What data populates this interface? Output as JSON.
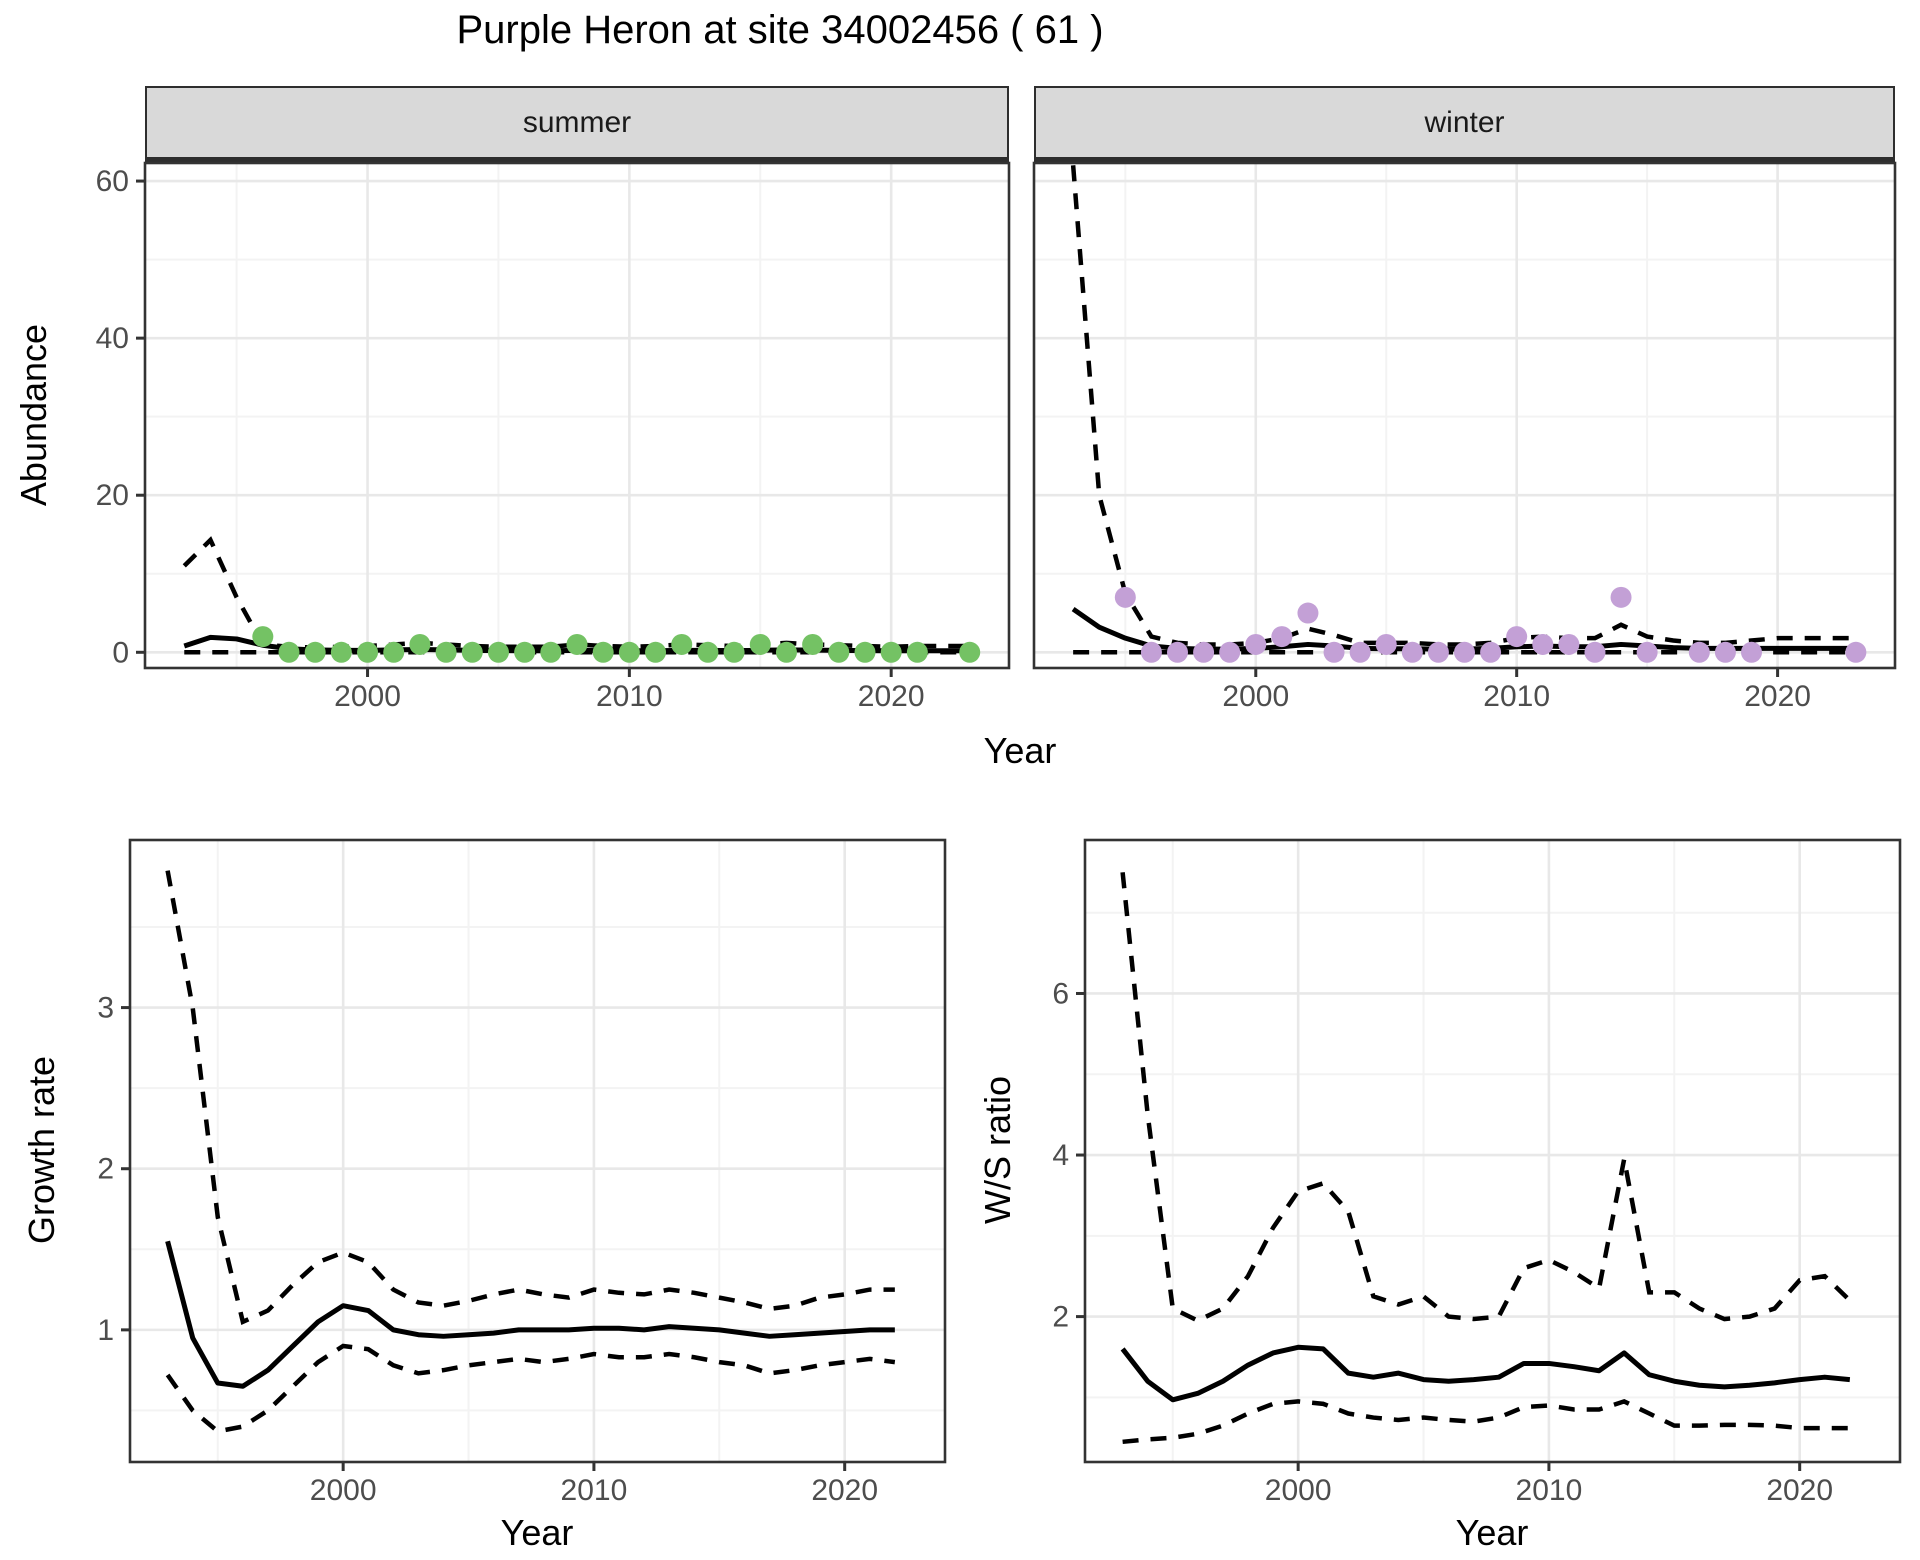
{
  "title": "Purple Heron at site 34002456 ( 61 )",
  "facets": {
    "summer": "summer",
    "winter": "winter"
  },
  "axis_labels": {
    "abundance": "Abundance",
    "growth_rate": "Growth rate",
    "ws_ratio": "W/S ratio",
    "year_top": "Year",
    "year_growth": "Year",
    "year_ws": "Year"
  },
  "colors": {
    "summer_point": "#74c264",
    "winter_point": "#c3a0d6",
    "line": "#000000",
    "strip_bg": "#d9d9d9",
    "grid_major": "#e8e8e8",
    "grid_minor": "#f3f3f3",
    "panel_border": "#333333",
    "tick_text": "#4d4d4d"
  },
  "chart_data": [
    {
      "id": "abundance-summer",
      "type": "line",
      "facet": "summer",
      "ylabel": "Abundance",
      "xlabel": "Year",
      "x_domain": [
        1991.5,
        2024.5
      ],
      "y_domain": [
        -2,
        62.3
      ],
      "x_ticks": [
        2000,
        2010,
        2020
      ],
      "x_minor": [
        1995,
        2005,
        2015
      ],
      "y_ticks": [
        0,
        20,
        40,
        60
      ],
      "y_minor": [
        10,
        30,
        50
      ],
      "y_labels": true,
      "years": [
        1993,
        1994,
        1995,
        1996,
        1997,
        1998,
        1999,
        2000,
        2001,
        2002,
        2003,
        2004,
        2005,
        2006,
        2007,
        2008,
        2009,
        2010,
        2011,
        2012,
        2013,
        2014,
        2015,
        2016,
        2017,
        2018,
        2019,
        2020,
        2021,
        2022,
        2023
      ],
      "fit": [
        0.8,
        1.9,
        1.7,
        0.9,
        0.45,
        0.3,
        0.25,
        0.25,
        0.3,
        0.35,
        0.3,
        0.25,
        0.22,
        0.2,
        0.2,
        0.25,
        0.22,
        0.2,
        0.2,
        0.25,
        0.25,
        0.22,
        0.25,
        0.3,
        0.28,
        0.25,
        0.22,
        0.2,
        0.2,
        0.2,
        0.2
      ],
      "upper": [
        11,
        14.3,
        7,
        1,
        0.7,
        0.6,
        0.7,
        0.8,
        1,
        1.2,
        1,
        0.8,
        0.7,
        0.7,
        0.7,
        1,
        0.8,
        0.7,
        0.8,
        1,
        0.9,
        0.8,
        1,
        1.2,
        1,
        0.9,
        0.8,
        0.7,
        0.8,
        0.8,
        0.8
      ],
      "lower": [
        0,
        0,
        0,
        0,
        0,
        0,
        0,
        0,
        0,
        0,
        0,
        0,
        0,
        0,
        0,
        0,
        0,
        0,
        0,
        0,
        0,
        0,
        0,
        0,
        0,
        0,
        0,
        0,
        0,
        0,
        0
      ],
      "obs_years": [
        1996,
        1997,
        1998,
        1999,
        2000,
        2001,
        2002,
        2003,
        2004,
        2005,
        2006,
        2007,
        2008,
        2009,
        2010,
        2011,
        2012,
        2013,
        2014,
        2015,
        2016,
        2017,
        2018,
        2019,
        2020,
        2021,
        2023
      ],
      "obs": [
        2,
        0,
        0,
        0,
        0,
        0,
        1,
        0,
        0,
        0,
        0,
        0,
        1,
        0,
        0,
        0,
        1,
        0,
        0,
        1,
        0,
        1,
        0,
        0,
        0,
        0,
        0
      ],
      "point_color": "#74c264"
    },
    {
      "id": "abundance-winter",
      "type": "line",
      "facet": "winter",
      "ylabel": "Abundance",
      "xlabel": "Year",
      "x_domain": [
        1991.5,
        2024.5
      ],
      "y_domain": [
        -2,
        62.3
      ],
      "x_ticks": [
        2000,
        2010,
        2020
      ],
      "x_minor": [
        1995,
        2005,
        2015
      ],
      "y_ticks": [
        0,
        20,
        40,
        60
      ],
      "y_minor": [
        10,
        30,
        50
      ],
      "y_labels": false,
      "years": [
        1993,
        1994,
        1995,
        1996,
        1997,
        1998,
        1999,
        2000,
        2001,
        2002,
        2003,
        2004,
        2005,
        2006,
        2007,
        2008,
        2009,
        2010,
        2011,
        2012,
        2013,
        2014,
        2015,
        2016,
        2017,
        2018,
        2019,
        2020,
        2021,
        2022,
        2023
      ],
      "fit": [
        5.5,
        3.2,
        1.8,
        0.8,
        0.5,
        0.4,
        0.4,
        0.5,
        0.7,
        1.0,
        0.8,
        0.5,
        0.45,
        0.45,
        0.4,
        0.4,
        0.5,
        0.7,
        0.8,
        0.7,
        0.7,
        1.0,
        0.8,
        0.6,
        0.5,
        0.5,
        0.5,
        0.5,
        0.5,
        0.5,
        0.5
      ],
      "upper": [
        62,
        20,
        7.5,
        2.0,
        1.2,
        1.0,
        1.0,
        1.2,
        1.8,
        3.0,
        2.2,
        1.2,
        1.2,
        1.2,
        1.0,
        1.0,
        1.2,
        1.8,
        2.0,
        1.8,
        1.8,
        3.5,
        2.0,
        1.5,
        1.2,
        1.2,
        1.5,
        1.8,
        1.8,
        1.8,
        1.8
      ],
      "lower": [
        0,
        0,
        0,
        0,
        0,
        0,
        0,
        0,
        0,
        0,
        0,
        0,
        0,
        0,
        0,
        0,
        0,
        0,
        0,
        0,
        0,
        0,
        0,
        0,
        0,
        0,
        0,
        0,
        0,
        0,
        0
      ],
      "obs_years": [
        1995,
        1996,
        1997,
        1998,
        1999,
        2000,
        2001,
        2002,
        2003,
        2004,
        2005,
        2006,
        2007,
        2008,
        2009,
        2010,
        2011,
        2012,
        2013,
        2014,
        2015,
        2017,
        2018,
        2019,
        2023
      ],
      "obs": [
        7,
        0,
        0,
        0,
        0,
        1,
        2,
        5,
        0,
        0,
        1,
        0,
        0,
        0,
        0,
        2,
        1,
        1,
        0,
        7,
        0,
        0,
        0,
        0,
        0
      ],
      "point_color": "#c3a0d6"
    },
    {
      "id": "growth-rate",
      "type": "line",
      "facet": null,
      "ylabel": "Growth rate",
      "xlabel": "Year",
      "x_domain": [
        1991.5,
        2024
      ],
      "y_domain": [
        0.18,
        4.04
      ],
      "x_ticks": [
        2000,
        2010,
        2020
      ],
      "x_minor": [
        1995,
        2005,
        2015
      ],
      "y_ticks": [
        1,
        2,
        3
      ],
      "y_minor": [
        0.5,
        1.5,
        2.5,
        3.5
      ],
      "y_labels": true,
      "years": [
        1993,
        1994,
        1995,
        1996,
        1997,
        1998,
        1999,
        2000,
        2001,
        2002,
        2003,
        2004,
        2005,
        2006,
        2007,
        2008,
        2009,
        2010,
        2011,
        2012,
        2013,
        2014,
        2015,
        2016,
        2017,
        2018,
        2019,
        2020,
        2021,
        2022
      ],
      "fit": [
        1.55,
        0.95,
        0.67,
        0.65,
        0.75,
        0.9,
        1.05,
        1.15,
        1.12,
        1.0,
        0.97,
        0.96,
        0.97,
        0.98,
        1.0,
        1.0,
        1.0,
        1.01,
        1.01,
        1.0,
        1.02,
        1.01,
        1.0,
        0.98,
        0.96,
        0.97,
        0.98,
        0.99,
        1.0,
        1.0
      ],
      "upper": [
        3.85,
        3.0,
        1.7,
        1.05,
        1.12,
        1.28,
        1.42,
        1.48,
        1.42,
        1.25,
        1.17,
        1.15,
        1.18,
        1.22,
        1.25,
        1.22,
        1.2,
        1.25,
        1.23,
        1.22,
        1.25,
        1.23,
        1.2,
        1.17,
        1.13,
        1.15,
        1.2,
        1.22,
        1.25,
        1.25
      ],
      "lower": [
        0.72,
        0.5,
        0.37,
        0.4,
        0.5,
        0.65,
        0.8,
        0.9,
        0.88,
        0.78,
        0.73,
        0.75,
        0.78,
        0.8,
        0.82,
        0.8,
        0.82,
        0.85,
        0.83,
        0.83,
        0.85,
        0.83,
        0.8,
        0.78,
        0.73,
        0.75,
        0.78,
        0.8,
        0.82,
        0.8
      ],
      "obs_years": [],
      "obs": [],
      "point_color": "#000000"
    },
    {
      "id": "ws-ratio",
      "type": "line",
      "facet": null,
      "ylabel": "W/S ratio",
      "xlabel": "Year",
      "x_domain": [
        1991.5,
        2024
      ],
      "y_domain": [
        0.2,
        7.9
      ],
      "x_ticks": [
        2000,
        2010,
        2020
      ],
      "x_minor": [
        1995,
        2005,
        2015
      ],
      "y_ticks": [
        2,
        4,
        6
      ],
      "y_minor": [
        1,
        3,
        5,
        7
      ],
      "y_labels": true,
      "years": [
        1993,
        1994,
        1995,
        1996,
        1997,
        1998,
        1999,
        2000,
        2001,
        2002,
        2003,
        2004,
        2005,
        2006,
        2007,
        2008,
        2009,
        2010,
        2011,
        2012,
        2013,
        2014,
        2015,
        2016,
        2017,
        2018,
        2019,
        2020,
        2021,
        2022
      ],
      "fit": [
        1.6,
        1.2,
        0.97,
        1.05,
        1.2,
        1.4,
        1.55,
        1.62,
        1.6,
        1.3,
        1.25,
        1.3,
        1.22,
        1.2,
        1.22,
        1.25,
        1.42,
        1.42,
        1.38,
        1.33,
        1.55,
        1.28,
        1.2,
        1.15,
        1.13,
        1.15,
        1.18,
        1.22,
        1.25,
        1.22
      ],
      "upper": [
        7.5,
        4.5,
        2.1,
        1.95,
        2.1,
        2.5,
        3.1,
        3.55,
        3.65,
        3.3,
        2.25,
        2.15,
        2.25,
        2.0,
        1.97,
        2.0,
        2.6,
        2.7,
        2.55,
        2.35,
        3.95,
        2.3,
        2.3,
        2.1,
        1.97,
        2.0,
        2.1,
        2.45,
        2.5,
        2.2
      ],
      "lower": [
        0.45,
        0.48,
        0.5,
        0.55,
        0.65,
        0.8,
        0.92,
        0.95,
        0.92,
        0.8,
        0.75,
        0.72,
        0.75,
        0.72,
        0.7,
        0.75,
        0.88,
        0.9,
        0.85,
        0.85,
        0.95,
        0.8,
        0.65,
        0.65,
        0.66,
        0.66,
        0.65,
        0.62,
        0.62,
        0.62
      ],
      "obs_years": [],
      "obs": [],
      "point_color": "#000000"
    }
  ]
}
